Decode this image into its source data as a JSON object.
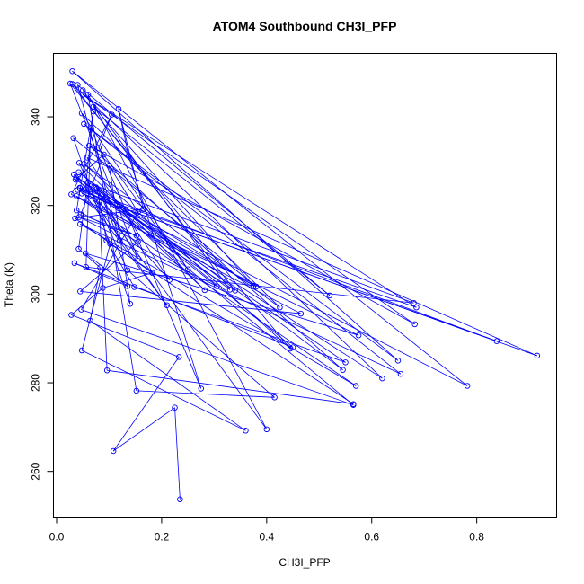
{
  "chart_data": {
    "type": "line",
    "title": "ATOM4 Southbound CH3I_PFP",
    "xlabel": "CH3I_PFP",
    "ylabel": "Theta (K)",
    "xlim": [
      -0.006,
      0.952
    ],
    "ylim": [
      249.7,
      354.3
    ],
    "x_ticks": [
      0.0,
      0.2,
      0.4,
      0.6,
      0.8
    ],
    "x_tick_labels": [
      "0.0",
      "0.2",
      "0.4",
      "0.6",
      "0.8"
    ],
    "y_ticks": [
      260,
      280,
      300,
      320,
      340
    ],
    "y_tick_labels": [
      "260",
      "280",
      "300",
      "320",
      "340"
    ],
    "grid": false,
    "markers": "open-circle",
    "series": [
      {
        "color": "#0000ff",
        "x": [
          0.235,
          0.225,
          0.108,
          0.233,
          0.028,
          0.088,
          0.182,
          0.035,
          0.165,
          0.118,
          0.137,
          0.275,
          0.065,
          0.056,
          0.68,
          0.059,
          0.042,
          0.083,
          0.064,
          0.36,
          0.048,
          0.102,
          0.565,
          0.096,
          0.081,
          0.4,
          0.06,
          0.152,
          0.415,
          0.135,
          0.043,
          0.282,
          0.077,
          0.095,
          0.148,
          0.55,
          0.085,
          0.12,
          0.04,
          0.52,
          0.07,
          0.375,
          0.037,
          0.215,
          0.058,
          0.915,
          0.048,
          0.838,
          0.044,
          0.782,
          0.03,
          0.65,
          0.052,
          0.655,
          0.045,
          0.57,
          0.038,
          0.575,
          0.055,
          0.135,
          0.034,
          0.45,
          0.042,
          0.545,
          0.062,
          0.682,
          0.05,
          0.685,
          0.04,
          0.34,
          0.03,
          0.62,
          0.036,
          0.09,
          0.046,
          0.152,
          0.043,
          0.305,
          0.033,
          0.565,
          0.047,
          0.155,
          0.1,
          0.14,
          0.032,
          0.38,
          0.045,
          0.21,
          0.055,
          0.07,
          0.038,
          0.155,
          0.045,
          0.465,
          0.028,
          0.105,
          0.08,
          0.25,
          0.048,
          0.425,
          0.052,
          0.445,
          0.026,
          0.155,
          0.075,
          0.33,
          0.05
        ],
        "y": [
          253.7,
          274.4,
          264.6,
          285.8,
          295.3,
          301.4,
          304.8,
          317.1,
          319.2,
          341.8,
          331.2,
          278.7,
          337.5,
          306.1,
          298.0,
          325.1,
          310.2,
          306.0,
          294.0,
          269.2,
          287.3,
          311.3,
          275.2,
          282.8,
          320.9,
          269.5,
          345.0,
          278.2,
          276.7,
          305.4,
          329.6,
          300.9,
          323.8,
          312.1,
          301.6,
          284.6,
          322.2,
          312.0,
          347.2,
          299.7,
          342.3,
          301.9,
          326.3,
          303.2,
          330.8,
          286.1,
          322.7,
          289.4,
          324.0,
          279.3,
          350.3,
          285.0,
          338.4,
          282.0,
          315.8,
          279.3,
          322.1,
          290.7,
          309.2,
          301.8,
          307.0,
          288.0,
          327.5,
          282.9,
          333.5,
          293.2,
          345.0,
          297.0,
          323.5,
          300.8,
          347.4,
          281.0,
          325.8,
          331.5,
          318.0,
          313.2,
          317.4,
          301.8,
          327.0,
          275.0,
          296.5,
          318.5,
          329.0,
          297.8,
          335.2,
          301.7,
          323.9,
          297.5,
          323.7,
          341.2,
          318.9,
          311.8,
          300.6,
          295.6,
          322.5,
          340.5,
          333.0,
          305.6,
          340.8,
          297.0,
          329.4,
          287.7,
          347.5,
          308.0,
          324.1,
          301.0,
          346.0
        ]
      }
    ]
  }
}
